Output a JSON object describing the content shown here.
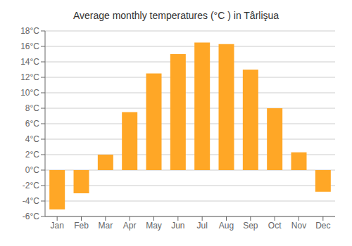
{
  "chart_data": {
    "type": "bar",
    "title": "Average monthly temperatures (°C ) in Târlişua",
    "categories": [
      "Jan",
      "Feb",
      "Mar",
      "Apr",
      "May",
      "Jun",
      "Jul",
      "Aug",
      "Sep",
      "Oct",
      "Nov",
      "Dec"
    ],
    "values": [
      -5.1,
      -3.0,
      2.0,
      7.5,
      12.5,
      15.0,
      16.5,
      16.3,
      13.0,
      8.0,
      2.3,
      -2.8
    ],
    "color": "#FFA726",
    "ylim": [
      -6,
      18
    ],
    "yticks": [
      {
        "value": -6,
        "label": "-6°C"
      },
      {
        "value": -4,
        "label": "-4°C"
      },
      {
        "value": -2,
        "label": "-2°C"
      },
      {
        "value": 0,
        "label": "0°C"
      },
      {
        "value": 2,
        "label": "2°C"
      },
      {
        "value": 4,
        "label": "4°C"
      },
      {
        "value": 6,
        "label": "6°C"
      },
      {
        "value": 8,
        "label": "8°C"
      },
      {
        "value": 10,
        "label": "10°C"
      },
      {
        "value": 12,
        "label": "12°C"
      },
      {
        "value": 14,
        "label": "14°C"
      },
      {
        "value": 16,
        "label": "16°C"
      },
      {
        "value": 18,
        "label": "18°C"
      }
    ],
    "grid": true
  }
}
